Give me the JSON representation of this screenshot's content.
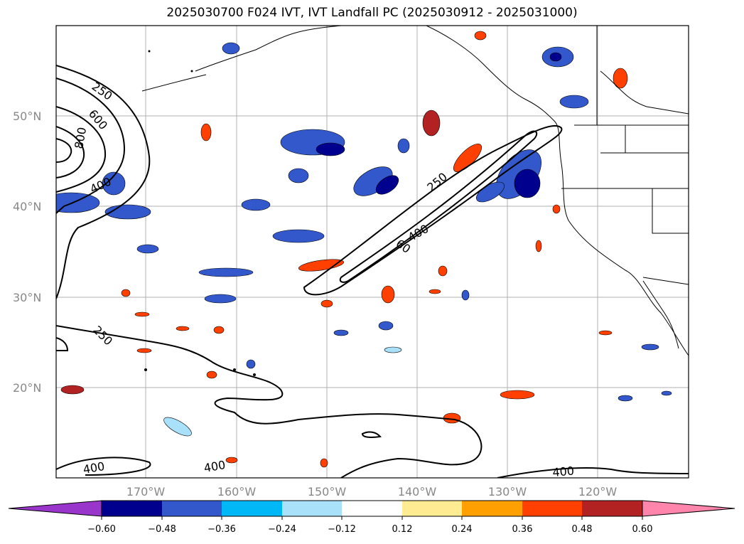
{
  "title": "2025030700 F024 IVT, IVT Landfall PC (2025030912 - 2025031000)",
  "lat_labels": [
    "50°N",
    "40°N",
    "30°N",
    "20°N"
  ],
  "lon_labels": [
    "170°W",
    "160°W",
    "150°W",
    "140°W",
    "130°W",
    "120°W"
  ],
  "contour_labels": [
    "250",
    "600",
    "800",
    "400",
    "250",
    "60",
    "400",
    "250",
    "400",
    "400",
    "400"
  ],
  "colorbar": {
    "ticks": [
      "−0.60",
      "−0.48",
      "−0.36",
      "−0.24",
      "−0.12",
      "0.12",
      "0.24",
      "0.36",
      "0.48",
      "0.60"
    ],
    "colors": [
      "#9a35cc",
      "#00008e",
      "#3358cc",
      "#00b8f5",
      "#a9e1fb",
      "#ffffff",
      "#ffeb91",
      "#ffa000",
      "#ff4000",
      "#b22222",
      "#ff85ac"
    ]
  }
}
